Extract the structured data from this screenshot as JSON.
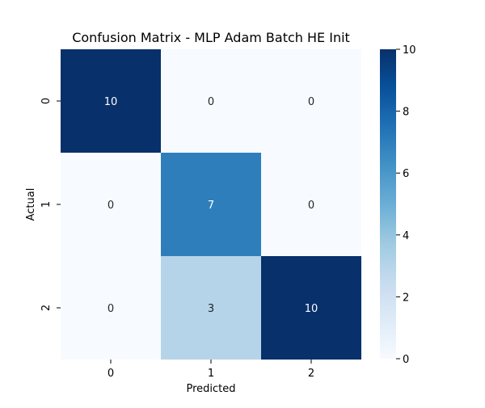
{
  "chart_data": {
    "type": "heatmap",
    "title": "Confusion Matrix - MLP Adam Batch HE Init",
    "xlabel": "Predicted",
    "ylabel": "Actual",
    "x_categories": [
      "0",
      "1",
      "2"
    ],
    "y_categories": [
      "0",
      "1",
      "2"
    ],
    "values": [
      [
        10,
        0,
        0
      ],
      [
        0,
        7,
        0
      ],
      [
        0,
        3,
        10
      ]
    ],
    "colorbar": {
      "colormap": "Blues",
      "vmin": 0,
      "vmax": 10,
      "ticks": [
        "0",
        "2",
        "4",
        "6",
        "8",
        "10"
      ]
    },
    "annotations": true
  }
}
